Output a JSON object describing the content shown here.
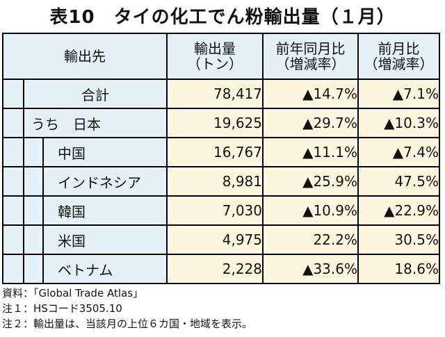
{
  "title": "表10　タイの化工でん粉輸出量（１月）",
  "headers": {
    "destination": "輸出先",
    "volume_l1": "輸出量",
    "volume_l2": "（トン）",
    "yoy_l1": "前年同月比",
    "yoy_l2": "（増減率）",
    "mom_l1": "前月比",
    "mom_l2": "（増減率）"
  },
  "rows": [
    {
      "label": "合計",
      "volume": "78,417",
      "yoy": "▲14.7%",
      "mom": "▲7.1%"
    },
    {
      "label": "うち　日本",
      "volume": "19,625",
      "yoy": "▲29.7%",
      "mom": "▲10.3%"
    },
    {
      "label": "中国",
      "volume": "16,767",
      "yoy": "▲11.1%",
      "mom": "▲7.4%"
    },
    {
      "label": "インドネシア",
      "volume": "8,981",
      "yoy": "▲25.9%",
      "mom": "47.5%"
    },
    {
      "label": "韓国",
      "volume": "7,030",
      "yoy": "▲10.9%",
      "mom": "▲22.9%"
    },
    {
      "label": "米国",
      "volume": "4,975",
      "yoy": "22.2%",
      "mom": "30.5%"
    },
    {
      "label": "ベトナム",
      "volume": "2,228",
      "yoy": "▲33.6%",
      "mom": "18.6%"
    }
  ],
  "notes": [
    "資料：「Global Trade Atlas」",
    "注１：HSコード3505.10",
    "注２：輸出量は、当該月の上位６カ国・地域を表示。"
  ]
}
